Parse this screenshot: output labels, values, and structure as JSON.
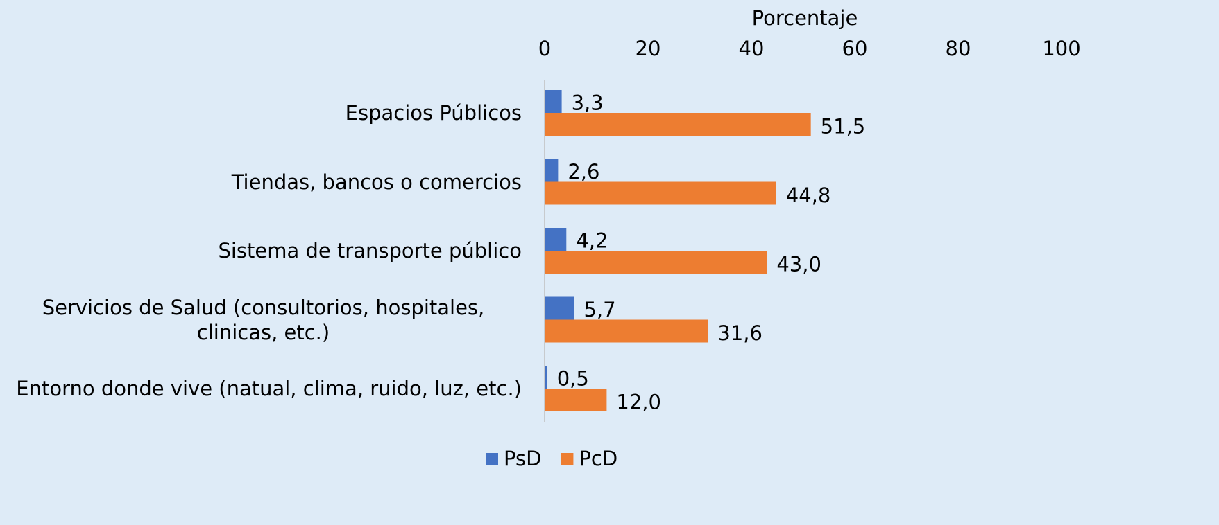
{
  "chart_data": {
    "type": "bar",
    "orientation": "horizontal",
    "x_label": "Porcentaje",
    "categories": [
      "Espacios Públicos",
      "Tiendas, bancos o comercios",
      "Sistema de transporte público",
      "Servicios de Salud (consultorios, hospitales, clinicas, etc.)",
      "Entorno donde vive (natual, clima, ruido, luz, etc.)"
    ],
    "series": [
      {
        "name": "PsD",
        "color": "#4472c4",
        "values": [
          3.3,
          2.6,
          4.2,
          5.7,
          0.5
        ],
        "value_labels": [
          "3,3",
          "2,6",
          "4,2",
          "5,7",
          "0,5"
        ]
      },
      {
        "name": "PcD",
        "color": "#ed7d31",
        "values": [
          51.5,
          44.8,
          43.0,
          31.6,
          12.0
        ],
        "value_labels": [
          "51,5",
          "44,8",
          "43,0",
          "31,6",
          "12,0"
        ]
      }
    ],
    "xlim": [
      0,
      100
    ],
    "xticks": [
      0,
      20,
      40,
      60,
      80,
      100
    ],
    "grid": false,
    "legend": "bottom"
  }
}
